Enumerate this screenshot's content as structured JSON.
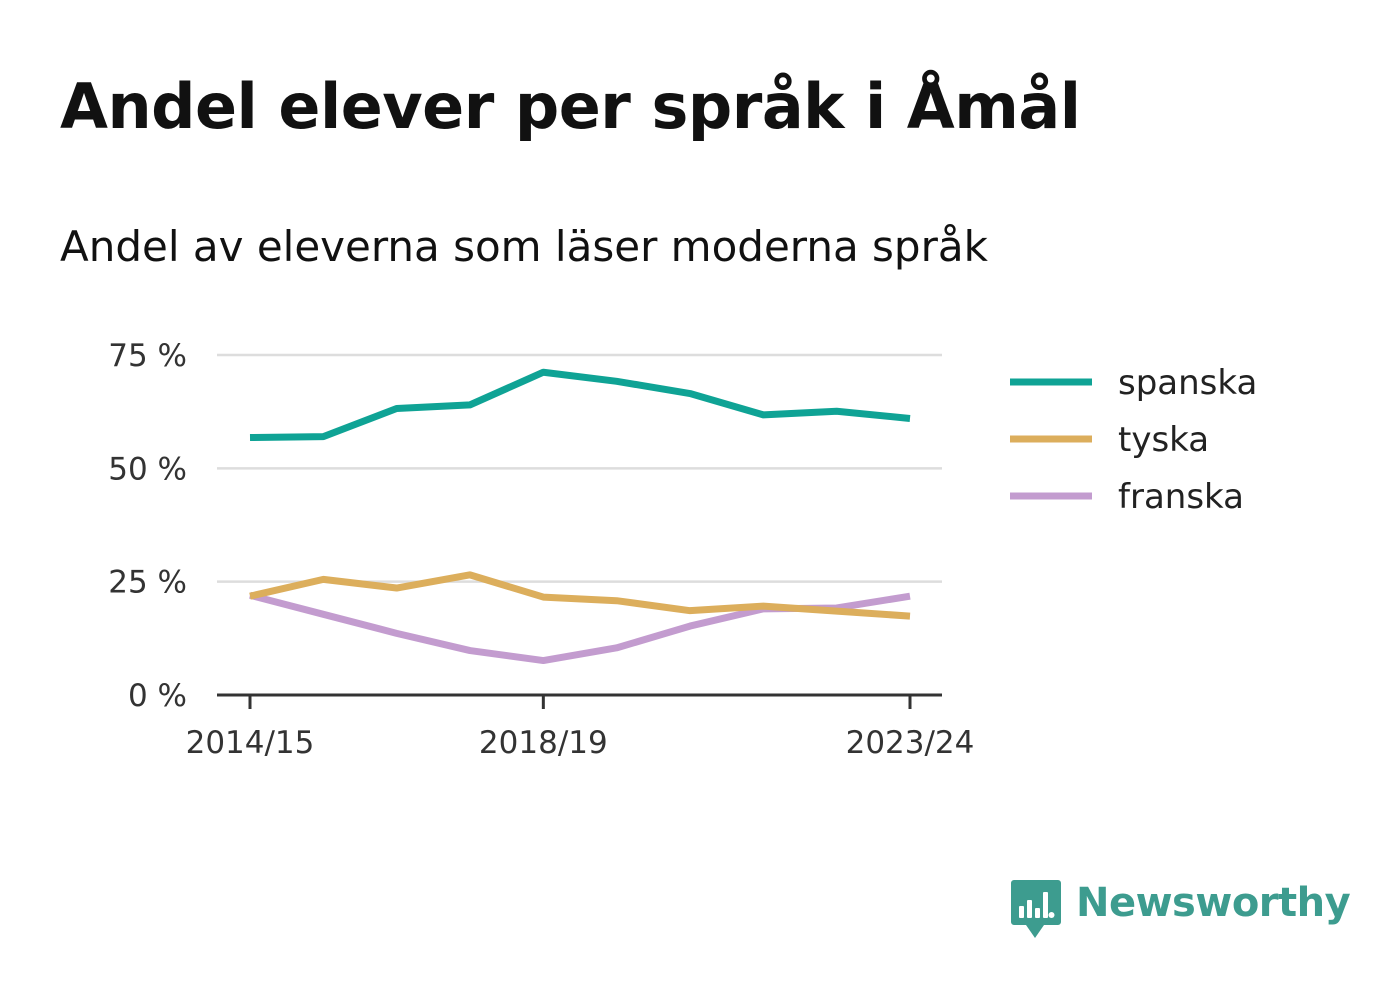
{
  "title": "Andel elever per språk i Åmål",
  "subtitle": "Andel av eleverna som läser moderna språk",
  "brand": {
    "name": "Newsworthy",
    "color": "#3d9c8f",
    "icon": "newsworthy-logo-icon"
  },
  "chart_data": {
    "type": "line",
    "x": [
      "2014/15",
      "2015/16",
      "2016/17",
      "2017/18",
      "2018/19",
      "2019/20",
      "2020/21",
      "2021/22",
      "2022/23",
      "2023/24"
    ],
    "x_tick_labels": [
      "2014/15",
      "2018/19",
      "2023/24"
    ],
    "y_ticks": [
      0,
      25,
      50,
      75
    ],
    "y_tick_labels": [
      "0 %",
      "25 %",
      "50 %",
      "75 %"
    ],
    "ylim": [
      0,
      75
    ],
    "unit": "%",
    "grid": true,
    "legend_position": "right",
    "series": [
      {
        "name": "spanska",
        "color": "#0fa395",
        "values": [
          56.8,
          57.0,
          63.2,
          64.0,
          71.2,
          69.2,
          66.5,
          61.8,
          62.6,
          61.0
        ]
      },
      {
        "name": "tyska",
        "color": "#dcae5c",
        "values": [
          21.8,
          25.5,
          23.6,
          26.5,
          21.6,
          20.8,
          18.6,
          19.6,
          18.5,
          17.4
        ]
      },
      {
        "name": "franska",
        "color": "#c39ccf",
        "values": [
          22.0,
          17.8,
          13.6,
          9.8,
          7.6,
          10.4,
          15.2,
          19.0,
          19.2,
          21.8
        ]
      }
    ]
  }
}
